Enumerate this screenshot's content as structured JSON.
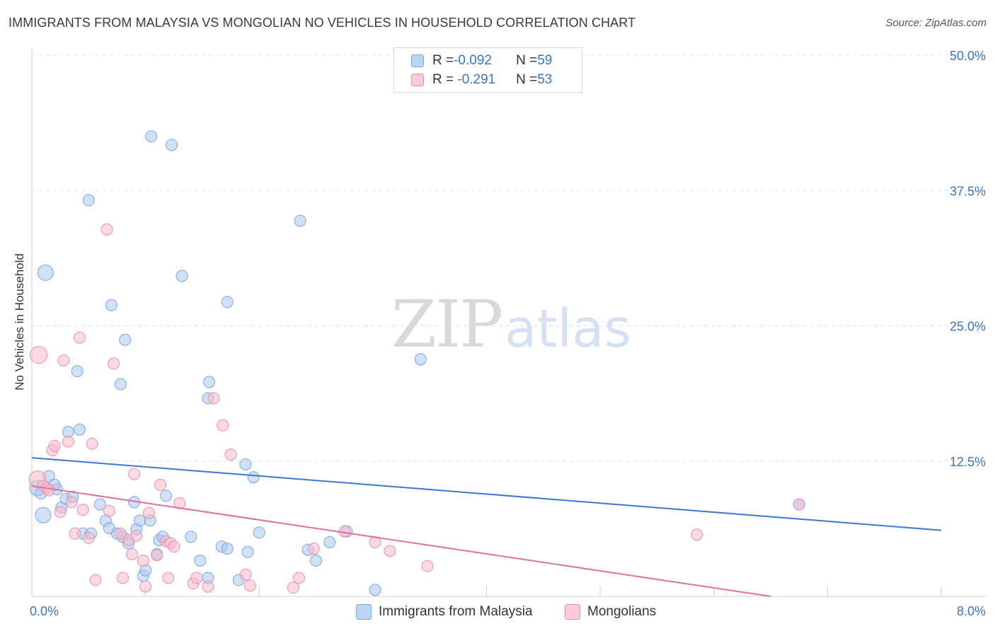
{
  "header": {
    "title": "IMMIGRANTS FROM MALAYSIA VS MONGOLIAN NO VEHICLES IN HOUSEHOLD CORRELATION CHART",
    "source": "Source: ZipAtlas.com"
  },
  "watermark": {
    "zip": "ZIP",
    "atlas": "atlas"
  },
  "legend": {
    "rows": [
      {
        "r_label": "R = ",
        "r_value": "-0.092",
        "n_label": "N = ",
        "n_value": "59"
      },
      {
        "r_label": "R = ",
        "r_value": " -0.291",
        "n_label": "N = ",
        "n_value": "53"
      }
    ]
  },
  "bottom_legend": {
    "series1": "Immigrants from Malaysia",
    "series2": "Mongolians"
  },
  "colors": {
    "blue_fill": "#a9c8f0",
    "blue_stroke": "#7aa6dc",
    "blue_line": "#3c78d0",
    "pink_fill": "#f5b9cc",
    "pink_stroke": "#e891ad",
    "pink_line": "#e0709a",
    "tick_label": "#3a74c9"
  },
  "chart_data": {
    "type": "scatter",
    "title": "IMMIGRANTS FROM MALAYSIA VS MONGOLIAN NO VEHICLES IN HOUSEHOLD CORRELATION CHART",
    "xlabel": "",
    "ylabel": "No Vehicles in Household",
    "xlim": [
      0,
      8
    ],
    "ylim": [
      0,
      50
    ],
    "x_tick_labels": [
      "0.0%",
      "8.0%"
    ],
    "y_ticks": [
      12.5,
      25.0,
      37.5,
      50.0
    ],
    "y_tick_labels": [
      "12.5%",
      "25.0%",
      "37.5%",
      "50.0%"
    ],
    "grid": true,
    "series": [
      {
        "name": "Immigrants from Malaysia",
        "color": "#a9c8f0",
        "trend": {
          "x": [
            0,
            8
          ],
          "y": [
            12.8,
            6.1
          ]
        },
        "points": [
          {
            "x": 0.05,
            "y": 10.0
          },
          {
            "x": 0.08,
            "y": 9.5
          },
          {
            "x": 0.1,
            "y": 7.5
          },
          {
            "x": 0.12,
            "y": 29.9
          },
          {
            "x": 0.15,
            "y": 11.1
          },
          {
            "x": 0.22,
            "y": 9.9
          },
          {
            "x": 0.26,
            "y": 8.2
          },
          {
            "x": 0.3,
            "y": 9.0
          },
          {
            "x": 0.32,
            "y": 15.2
          },
          {
            "x": 0.36,
            "y": 9.2
          },
          {
            "x": 0.4,
            "y": 20.8
          },
          {
            "x": 0.42,
            "y": 15.4
          },
          {
            "x": 0.45,
            "y": 5.8
          },
          {
            "x": 0.5,
            "y": 36.6
          },
          {
            "x": 0.52,
            "y": 5.8
          },
          {
            "x": 0.6,
            "y": 8.5
          },
          {
            "x": 0.65,
            "y": 7.0
          },
          {
            "x": 0.68,
            "y": 6.3
          },
          {
            "x": 0.7,
            "y": 26.9
          },
          {
            "x": 0.75,
            "y": 5.8
          },
          {
            "x": 0.78,
            "y": 19.6
          },
          {
            "x": 0.8,
            "y": 5.5
          },
          {
            "x": 0.82,
            "y": 23.7
          },
          {
            "x": 0.85,
            "y": 4.9
          },
          {
            "x": 0.9,
            "y": 8.7
          },
          {
            "x": 0.92,
            "y": 6.2
          },
          {
            "x": 0.95,
            "y": 7.0
          },
          {
            "x": 0.98,
            "y": 1.9
          },
          {
            "x": 1.0,
            "y": 2.4
          },
          {
            "x": 1.04,
            "y": 7.0
          },
          {
            "x": 1.05,
            "y": 42.5
          },
          {
            "x": 1.1,
            "y": 3.9
          },
          {
            "x": 1.12,
            "y": 5.2
          },
          {
            "x": 1.15,
            "y": 5.5
          },
          {
            "x": 1.18,
            "y": 9.3
          },
          {
            "x": 1.23,
            "y": 41.7
          },
          {
            "x": 1.32,
            "y": 29.6
          },
          {
            "x": 1.4,
            "y": 5.5
          },
          {
            "x": 1.48,
            "y": 3.3
          },
          {
            "x": 1.55,
            "y": 1.7
          },
          {
            "x": 1.55,
            "y": 18.3
          },
          {
            "x": 1.56,
            "y": 19.8
          },
          {
            "x": 1.67,
            "y": 4.6
          },
          {
            "x": 1.72,
            "y": 4.4
          },
          {
            "x": 1.72,
            "y": 27.2
          },
          {
            "x": 1.82,
            "y": 1.5
          },
          {
            "x": 1.88,
            "y": 12.2
          },
          {
            "x": 1.9,
            "y": 4.1
          },
          {
            "x": 1.95,
            "y": 11.0
          },
          {
            "x": 2.0,
            "y": 5.9
          },
          {
            "x": 2.36,
            "y": 34.7
          },
          {
            "x": 2.43,
            "y": 4.3
          },
          {
            "x": 2.5,
            "y": 3.3
          },
          {
            "x": 2.62,
            "y": 5.0
          },
          {
            "x": 2.77,
            "y": 6.0
          },
          {
            "x": 3.02,
            "y": 0.6
          },
          {
            "x": 3.42,
            "y": 21.9
          },
          {
            "x": 6.75,
            "y": 8.5
          },
          {
            "x": 0.2,
            "y": 10.3
          }
        ]
      },
      {
        "name": "Mongolians",
        "color": "#f5b9cc",
        "trend": {
          "x": [
            0,
            6.5
          ],
          "y": [
            10.2,
            0.0
          ]
        },
        "points": [
          {
            "x": 0.05,
            "y": 10.8
          },
          {
            "x": 0.06,
            "y": 22.3
          },
          {
            "x": 0.1,
            "y": 10.2
          },
          {
            "x": 0.13,
            "y": 10.0
          },
          {
            "x": 0.15,
            "y": 9.8
          },
          {
            "x": 0.18,
            "y": 13.5
          },
          {
            "x": 0.2,
            "y": 13.9
          },
          {
            "x": 0.25,
            "y": 7.8
          },
          {
            "x": 0.28,
            "y": 21.8
          },
          {
            "x": 0.32,
            "y": 14.3
          },
          {
            "x": 0.35,
            "y": 8.7
          },
          {
            "x": 0.38,
            "y": 5.8
          },
          {
            "x": 0.42,
            "y": 23.9
          },
          {
            "x": 0.45,
            "y": 8.0
          },
          {
            "x": 0.5,
            "y": 5.4
          },
          {
            "x": 0.53,
            "y": 14.1
          },
          {
            "x": 0.56,
            "y": 1.5
          },
          {
            "x": 0.66,
            "y": 33.9
          },
          {
            "x": 0.68,
            "y": 7.9
          },
          {
            "x": 0.72,
            "y": 21.5
          },
          {
            "x": 0.78,
            "y": 5.8
          },
          {
            "x": 0.8,
            "y": 1.7
          },
          {
            "x": 0.85,
            "y": 5.2
          },
          {
            "x": 0.88,
            "y": 3.9
          },
          {
            "x": 0.9,
            "y": 11.3
          },
          {
            "x": 0.92,
            "y": 5.6
          },
          {
            "x": 0.98,
            "y": 3.3
          },
          {
            "x": 1.0,
            "y": 0.9
          },
          {
            "x": 1.03,
            "y": 7.7
          },
          {
            "x": 1.1,
            "y": 3.8
          },
          {
            "x": 1.13,
            "y": 10.3
          },
          {
            "x": 1.18,
            "y": 5.1
          },
          {
            "x": 1.2,
            "y": 1.7
          },
          {
            "x": 1.22,
            "y": 4.9
          },
          {
            "x": 1.25,
            "y": 4.6
          },
          {
            "x": 1.3,
            "y": 8.6
          },
          {
            "x": 1.42,
            "y": 1.2
          },
          {
            "x": 1.45,
            "y": 1.7
          },
          {
            "x": 1.55,
            "y": 0.9
          },
          {
            "x": 1.6,
            "y": 18.3
          },
          {
            "x": 1.68,
            "y": 15.8
          },
          {
            "x": 1.75,
            "y": 13.1
          },
          {
            "x": 1.88,
            "y": 2.0
          },
          {
            "x": 1.92,
            "y": 1.0
          },
          {
            "x": 2.3,
            "y": 0.8
          },
          {
            "x": 2.35,
            "y": 1.7
          },
          {
            "x": 2.48,
            "y": 4.4
          },
          {
            "x": 2.75,
            "y": 6.0
          },
          {
            "x": 3.02,
            "y": 5.0
          },
          {
            "x": 3.15,
            "y": 4.2
          },
          {
            "x": 3.48,
            "y": 2.8
          },
          {
            "x": 5.85,
            "y": 5.7
          },
          {
            "x": 6.75,
            "y": 8.5
          }
        ]
      }
    ]
  }
}
